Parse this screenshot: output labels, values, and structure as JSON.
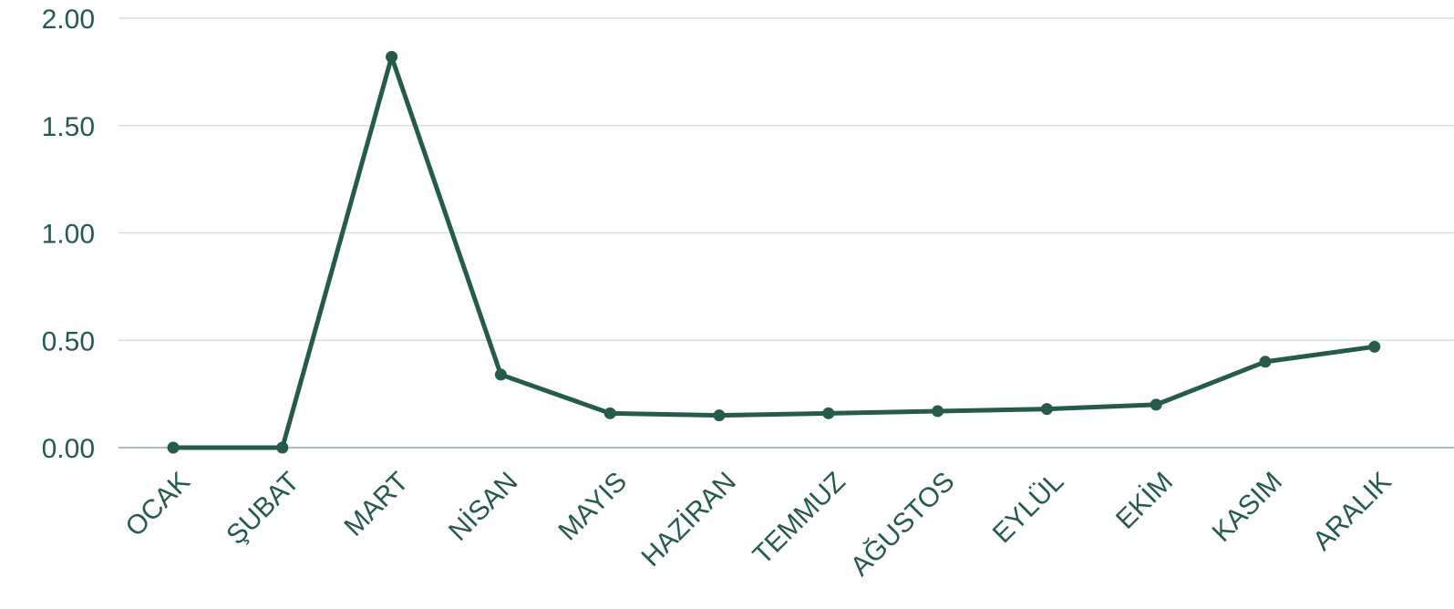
{
  "colors": {
    "line": "#245c47",
    "text": "#245c47",
    "grid": "#cfdcd6",
    "baseline": "#8fa89e"
  },
  "chart_data": {
    "type": "line",
    "title": "",
    "xlabel": "",
    "ylabel": "",
    "categories": [
      "OCAK",
      "ŞUBAT",
      "MART",
      "NİSAN",
      "MAYIS",
      "HAZİRAN",
      "TEMMUZ",
      "AĞUSTOS",
      "EYLÜL",
      "EKİM",
      "KASIM",
      "ARALIK"
    ],
    "series": [
      {
        "values": [
          0.0,
          0.0,
          1.82,
          0.34,
          0.16,
          0.15,
          0.16,
          0.17,
          0.18,
          0.2,
          0.4,
          0.47
        ]
      }
    ],
    "ylim": [
      0,
      2
    ],
    "yticks": [
      "0.00",
      "0.50",
      "1.00",
      "1.50",
      "2.00"
    ],
    "grid": true,
    "legend": "none",
    "markers": true
  }
}
